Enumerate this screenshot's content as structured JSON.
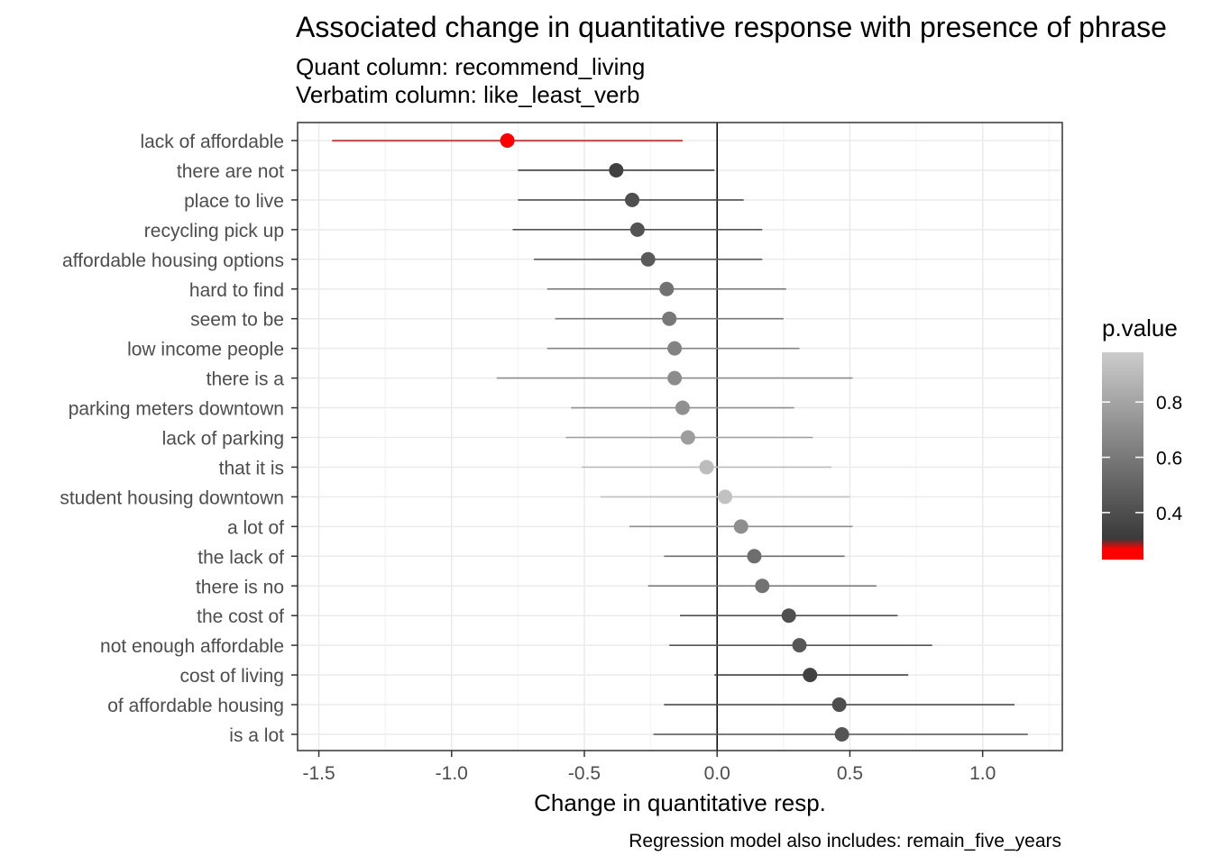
{
  "chart_data": {
    "type": "scatter",
    "title": "Associated change in quantitative response with presence of phrase",
    "subtitle_lines": [
      "Quant column: recommend_living",
      "Verbatim column: like_least_verb"
    ],
    "xlabel": "Change in quantitative resp.",
    "ylabel": "",
    "caption": "Regression model also includes: remain_five_years",
    "xlim": [
      -1.58,
      1.3
    ],
    "xticks": [
      -1.5,
      -1.0,
      -0.5,
      0.0,
      0.5,
      1.0
    ],
    "xtick_labels": [
      "-1.5",
      "-1.0",
      "-0.5",
      "0.0",
      "0.5",
      "1.0"
    ],
    "grid": true,
    "reference_line_x": 0,
    "legend": {
      "title": "p.value",
      "position": "right",
      "labels": [
        "0.8",
        "0.6",
        "0.4"
      ],
      "label_values": [
        0.8,
        0.6,
        0.4
      ],
      "range": [
        0.23,
        0.98
      ]
    },
    "points": [
      {
        "phrase": "lack of affordable",
        "estimate": -0.79,
        "lower": -1.45,
        "upper": -0.13,
        "p_value": 0.02,
        "color": "#ff0000"
      },
      {
        "phrase": "there are not",
        "estimate": -0.38,
        "lower": -0.75,
        "upper": -0.01,
        "p_value": 0.35,
        "color": "#404040"
      },
      {
        "phrase": "place to live",
        "estimate": -0.32,
        "lower": -0.75,
        "upper": 0.1,
        "p_value": 0.43,
        "color": "#4f4f4f"
      },
      {
        "phrase": "recycling pick up",
        "estimate": -0.3,
        "lower": -0.77,
        "upper": 0.17,
        "p_value": 0.46,
        "color": "#535353"
      },
      {
        "phrase": "affordable housing options",
        "estimate": -0.26,
        "lower": -0.69,
        "upper": 0.17,
        "p_value": 0.5,
        "color": "#5a5a5a"
      },
      {
        "phrase": "hard to find",
        "estimate": -0.19,
        "lower": -0.64,
        "upper": 0.26,
        "p_value": 0.6,
        "color": "#727272"
      },
      {
        "phrase": "seem to be",
        "estimate": -0.18,
        "lower": -0.61,
        "upper": 0.25,
        "p_value": 0.62,
        "color": "#787878"
      },
      {
        "phrase": "low income people",
        "estimate": -0.16,
        "lower": -0.64,
        "upper": 0.31,
        "p_value": 0.66,
        "color": "#838383"
      },
      {
        "phrase": "there is a",
        "estimate": -0.16,
        "lower": -0.83,
        "upper": 0.51,
        "p_value": 0.69,
        "color": "#8c8c8c"
      },
      {
        "phrase": "parking meters downtown",
        "estimate": -0.13,
        "lower": -0.55,
        "upper": 0.29,
        "p_value": 0.71,
        "color": "#909090"
      },
      {
        "phrase": "lack of parking",
        "estimate": -0.11,
        "lower": -0.57,
        "upper": 0.36,
        "p_value": 0.76,
        "color": "#9d9d9d"
      },
      {
        "phrase": "that it is",
        "estimate": -0.04,
        "lower": -0.51,
        "upper": 0.43,
        "p_value": 0.88,
        "color": "#bcbcbc"
      },
      {
        "phrase": "student housing downtown",
        "estimate": 0.03,
        "lower": -0.44,
        "upper": 0.5,
        "p_value": 0.9,
        "color": "#c1c1c1"
      },
      {
        "phrase": "a lot of",
        "estimate": 0.09,
        "lower": -0.33,
        "upper": 0.51,
        "p_value": 0.69,
        "color": "#8e8e8e"
      },
      {
        "phrase": "the lack of",
        "estimate": 0.14,
        "lower": -0.2,
        "upper": 0.48,
        "p_value": 0.58,
        "color": "#6e6e6e"
      },
      {
        "phrase": "there is no",
        "estimate": 0.17,
        "lower": -0.26,
        "upper": 0.6,
        "p_value": 0.6,
        "color": "#727272"
      },
      {
        "phrase": "the cost of",
        "estimate": 0.27,
        "lower": -0.14,
        "upper": 0.68,
        "p_value": 0.45,
        "color": "#505050"
      },
      {
        "phrase": "not enough affordable",
        "estimate": 0.31,
        "lower": -0.18,
        "upper": 0.81,
        "p_value": 0.48,
        "color": "#575757"
      },
      {
        "phrase": "cost of living",
        "estimate": 0.35,
        "lower": -0.01,
        "upper": 0.72,
        "p_value": 0.36,
        "color": "#424242"
      },
      {
        "phrase": "of affordable housing",
        "estimate": 0.46,
        "lower": -0.2,
        "upper": 1.12,
        "p_value": 0.42,
        "color": "#4e4e4e"
      },
      {
        "phrase": "is a lot",
        "estimate": 0.47,
        "lower": -0.24,
        "upper": 1.17,
        "p_value": 0.47,
        "color": "#555555"
      }
    ]
  }
}
